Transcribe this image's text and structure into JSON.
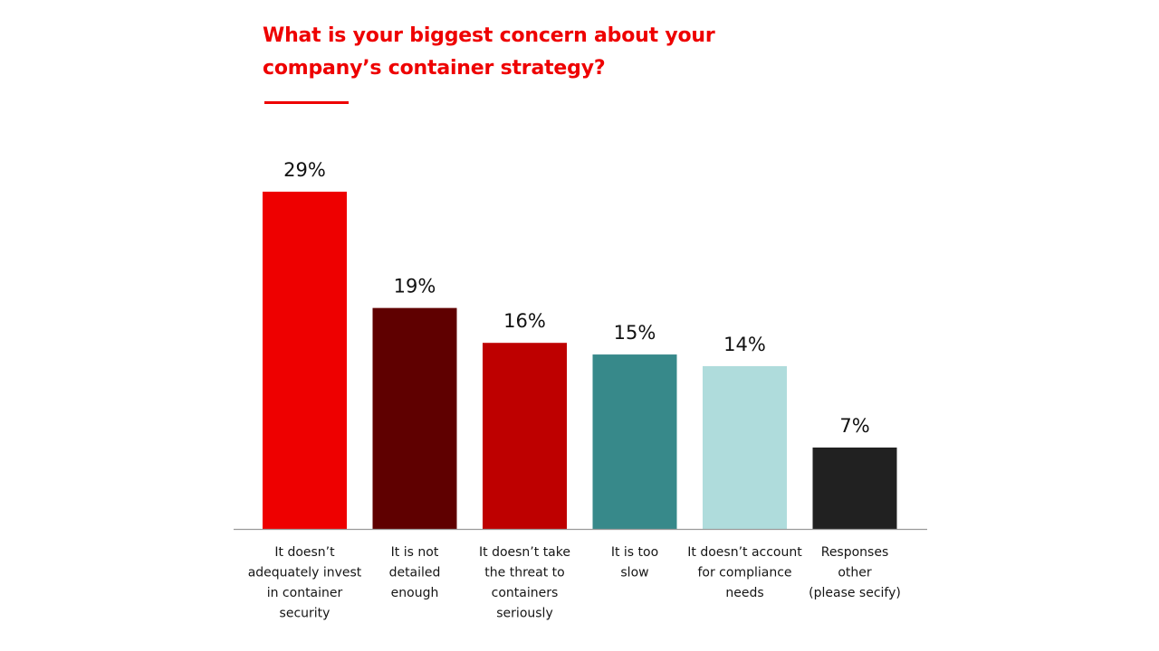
{
  "chart_data": {
    "type": "bar",
    "title": "What is your biggest concern about your company’s container strategy?",
    "categories": [
      [
        "It doesn’t",
        "adequately invest",
        "in container",
        "security"
      ],
      [
        "It is not",
        "detailed",
        "enough"
      ],
      [
        "It doesn’t take",
        "the threat to",
        "containers",
        "seriously"
      ],
      [
        "It is too",
        "slow"
      ],
      [
        "It doesn’t account",
        "for compliance",
        "needs"
      ],
      [
        "Responses",
        "other",
        "(please secify)"
      ]
    ],
    "values": [
      29,
      19,
      16,
      15,
      14,
      7
    ],
    "value_labels": [
      "29%",
      "19%",
      "16%",
      "15%",
      "14%",
      "7%"
    ],
    "colors": [
      "#ee0000",
      "#5f0000",
      "#be0000",
      "#37898a",
      "#afdcdc",
      "#212121"
    ],
    "ylim": [
      0,
      29
    ],
    "grid": false
  }
}
